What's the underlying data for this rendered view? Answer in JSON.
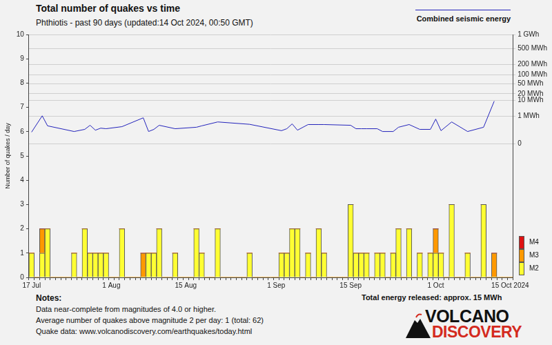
{
  "chart_data": {
    "type": "bar",
    "title": "Total number of quakes vs time",
    "subtitle": "Phthiotis - past 90 days (updated:14 Oct 2024, 00:50 GMT)",
    "y_label": "Number of quakes / day",
    "categories": [
      "17 Jul",
      null,
      null,
      null,
      null,
      null,
      null,
      null,
      null,
      null,
      null,
      null,
      null,
      null,
      null,
      "1 Aug",
      null,
      null,
      null,
      null,
      null,
      null,
      null,
      null,
      null,
      null,
      null,
      null,
      null,
      "15 Aug",
      null,
      null,
      null,
      null,
      null,
      null,
      null,
      null,
      null,
      null,
      null,
      null,
      null,
      null,
      null,
      null,
      "1 Sep",
      null,
      null,
      null,
      null,
      null,
      null,
      null,
      null,
      null,
      null,
      null,
      null,
      null,
      "15 Sep",
      null,
      null,
      null,
      null,
      null,
      null,
      null,
      null,
      null,
      null,
      null,
      null,
      null,
      null,
      null,
      "1 Oct",
      null,
      null,
      null,
      null,
      null,
      null,
      null,
      null,
      null,
      null,
      null,
      null,
      null,
      "15 Oct 2024"
    ],
    "series": [
      {
        "name": "M2",
        "color": "#ffff33",
        "values": [
          1,
          0,
          1,
          2,
          0,
          0,
          0,
          0,
          1,
          0,
          2,
          1,
          1,
          1,
          1,
          0,
          0,
          2,
          0,
          0,
          0,
          0,
          1,
          1,
          2,
          0,
          0,
          1,
          0,
          0,
          0,
          2,
          1,
          0,
          0,
          2,
          0,
          0,
          0,
          0,
          0,
          1,
          0,
          0,
          0,
          0,
          0,
          1,
          1,
          2,
          2,
          0,
          1,
          0,
          2,
          1,
          0,
          0,
          0,
          0,
          3,
          1,
          1,
          1,
          0,
          1,
          1,
          0,
          1,
          2,
          0,
          2,
          0,
          1,
          0,
          1,
          1,
          1,
          0,
          3,
          0,
          0,
          1,
          0,
          0,
          3,
          0,
          0,
          0,
          0,
          0
        ]
      },
      {
        "name": "M3",
        "color": "#ff9900",
        "values": [
          0,
          0,
          1,
          0,
          0,
          0,
          0,
          0,
          0,
          0,
          0,
          0,
          0,
          0,
          0,
          0,
          0,
          0,
          0,
          0,
          0,
          1,
          0,
          0,
          0,
          0,
          0,
          0,
          0,
          0,
          0,
          0,
          0,
          0,
          0,
          0,
          0,
          0,
          0,
          0,
          0,
          0,
          0,
          0,
          0,
          0,
          0,
          0,
          0,
          0,
          0,
          0,
          0,
          0,
          0,
          0,
          0,
          0,
          0,
          0,
          0,
          0,
          0,
          0,
          0,
          0,
          0,
          0,
          0,
          0,
          0,
          0,
          0,
          0,
          0,
          0,
          1,
          0,
          0,
          0,
          0,
          0,
          0,
          0,
          0,
          0,
          0,
          1,
          0,
          0,
          0
        ]
      },
      {
        "name": "M4",
        "color": "#dd1111",
        "values": [
          0,
          0,
          0,
          0,
          0,
          0,
          0,
          0,
          0,
          0,
          0,
          0,
          0,
          0,
          0,
          0,
          0,
          0,
          0,
          0,
          0,
          0,
          0,
          0,
          0,
          0,
          0,
          0,
          0,
          0,
          0,
          0,
          0,
          0,
          0,
          0,
          0,
          0,
          0,
          0,
          0,
          0,
          0,
          0,
          0,
          0,
          0,
          0,
          0,
          0,
          0,
          0,
          0,
          0,
          0,
          0,
          0,
          0,
          0,
          0,
          0,
          0,
          0,
          0,
          0,
          0,
          0,
          0,
          0,
          0,
          0,
          0,
          0,
          0,
          0,
          0,
          0,
          0,
          0,
          0,
          0,
          0,
          0,
          0,
          0,
          0,
          0,
          0,
          0,
          0,
          0
        ]
      },
      {
        "name": "Combined seismic energy",
        "type": "line",
        "axis": "y2",
        "color": "#2222bb",
        "values": [
          0.014,
          null,
          1.1,
          0.12,
          null,
          null,
          null,
          null,
          0.018,
          null,
          0.04,
          0.14,
          0.03,
          0.06,
          0.05,
          null,
          null,
          0.095,
          null,
          null,
          null,
          0.76,
          0.018,
          0.04,
          0.14,
          null,
          null,
          0.05,
          null,
          null,
          null,
          0.08,
          0.12,
          null,
          null,
          0.32,
          null,
          null,
          null,
          null,
          null,
          0.18,
          null,
          null,
          null,
          null,
          null,
          0.025,
          0.05,
          0.2,
          0.03,
          null,
          0.17,
          null,
          0.17,
          0.17,
          null,
          null,
          null,
          null,
          0.14,
          0.05,
          0.05,
          0.05,
          null,
          0.05,
          0.018,
          null,
          0.018,
          0.08,
          null,
          0.17,
          null,
          0.04,
          null,
          0.04,
          0.59,
          0.025,
          null,
          0.32,
          null,
          null,
          0.018,
          null,
          null,
          0.08,
          null,
          9,
          null,
          null,
          null
        ]
      }
    ],
    "stacked": true,
    "ylim": [
      0,
      10
    ],
    "yticks": [
      0,
      1,
      2,
      3,
      4,
      5,
      6,
      7,
      8,
      9,
      10
    ],
    "y2lim": [
      0,
      1000
    ],
    "y2ticks": [
      0,
      {
        "value": 1,
        "label": "1 MWh"
      },
      {
        "value": 10,
        "label": "10 MWh"
      },
      {
        "value": 20,
        "label": "20 MWh"
      },
      {
        "value": 50,
        "label": "50 MWh"
      },
      {
        "value": 100,
        "label": "100 MWh"
      },
      {
        "value": 200,
        "label": "200 MWh"
      },
      {
        "value": 500,
        "label": "500 MWh"
      },
      {
        "value": 1000,
        "label": "1 GWh"
      }
    ],
    "grid": true,
    "notes_title": "Notes:",
    "notes": [
      "Data near-complete from magnitudes of 4.0 or higher.",
      "Average number of quakes above magnitude 2 per day: 1 (total: 62)",
      "Quake data: www.volcanodiscovery.com/earthquakes/today.html"
    ],
    "total_energy": "Total energy released: approx. 15 MWh",
    "logo": [
      "VOLCANO",
      "DISCOVERY"
    ]
  }
}
